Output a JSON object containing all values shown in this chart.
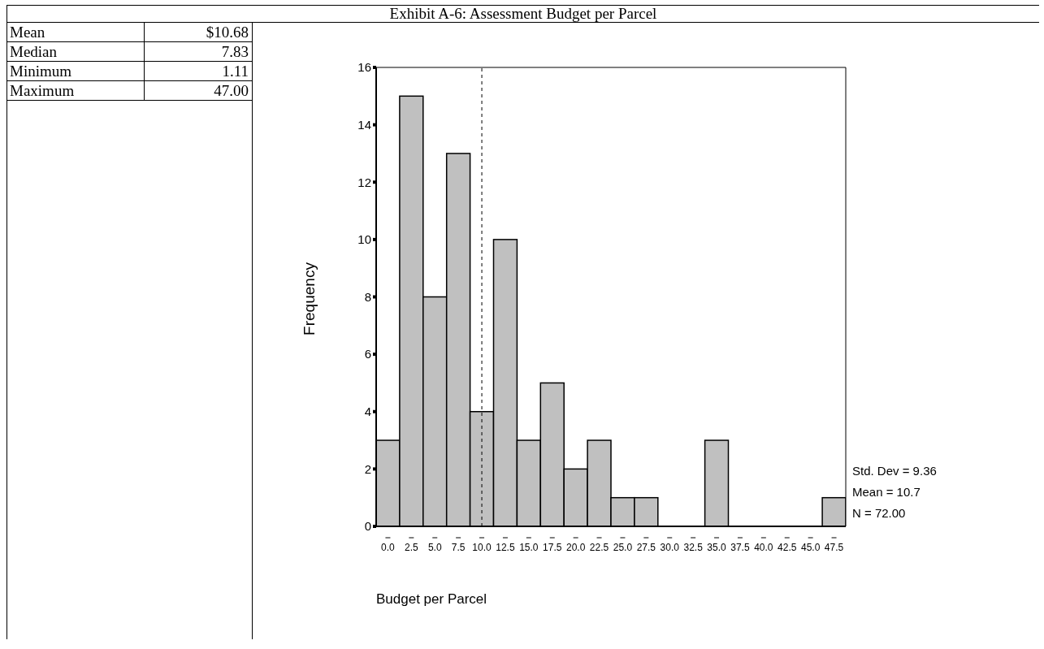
{
  "chart_data": {
    "type": "histogram",
    "title": "Exhibit A-6:  Assessment Budget per Parcel",
    "xlabel": "Budget per Parcel",
    "ylabel": "Frequency",
    "bins": [
      -1.25,
      1.25,
      3.75,
      6.25,
      8.75,
      11.25,
      13.75,
      16.25,
      18.75,
      21.25,
      23.75,
      26.25,
      28.75,
      31.25,
      33.75,
      36.25,
      38.75,
      41.25,
      43.75,
      46.25,
      48.75
    ],
    "values": [
      3,
      15,
      8,
      13,
      4,
      10,
      3,
      5,
      2,
      3,
      1,
      1,
      0,
      0,
      3,
      0,
      0,
      0,
      0,
      1
    ],
    "color": "#c0c0c0",
    "xlim": [
      -1.25,
      48.75
    ],
    "xticks": [
      {
        "value": 0,
        "label": "0.0"
      },
      {
        "value": 2.5,
        "label": "2.5"
      },
      {
        "value": 5,
        "label": "5.0"
      },
      {
        "value": 7.5,
        "label": "7.5"
      },
      {
        "value": 10,
        "label": "10.0"
      },
      {
        "value": 12.5,
        "label": "12.5"
      },
      {
        "value": 15,
        "label": "15.0"
      },
      {
        "value": 17.5,
        "label": "17.5"
      },
      {
        "value": 20,
        "label": "20.0"
      },
      {
        "value": 22.5,
        "label": "22.5"
      },
      {
        "value": 25,
        "label": "25.0"
      },
      {
        "value": 27.5,
        "label": "27.5"
      },
      {
        "value": 30,
        "label": "30.0"
      },
      {
        "value": 32.5,
        "label": "32.5"
      },
      {
        "value": 35,
        "label": "35.0"
      },
      {
        "value": 37.5,
        "label": "37.5"
      },
      {
        "value": 40,
        "label": "40.0"
      },
      {
        "value": 42.5,
        "label": "42.5"
      },
      {
        "value": 45,
        "label": "45.0"
      },
      {
        "value": 47.5,
        "label": "47.5"
      }
    ],
    "ylim": [
      0,
      16
    ],
    "yticks": [
      0,
      2,
      4,
      6,
      8,
      10,
      12,
      14,
      16
    ],
    "ref_lines": [
      {
        "axis": "x",
        "value": 10,
        "line_style": "dashed",
        "color": "#000000"
      }
    ],
    "annotations": [
      "Mean",
      "$10.68",
      "Median",
      "7.83",
      "Minimum",
      "1.11",
      "Maximum",
      "47.00",
      "Std. Dev = 9.36",
      "Mean = 10.7",
      "N = 72.00"
    ]
  }
}
